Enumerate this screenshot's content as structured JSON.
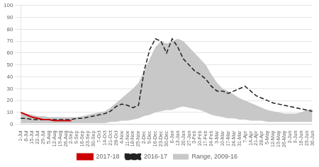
{
  "chart_data": {
    "type": "line",
    "categories": [
      "1-Jul",
      "8-Jul",
      "15-Jul",
      "22-Jul",
      "29-Jul",
      "5-Aug",
      "12-Aug",
      "19-Aug",
      "26-Aug",
      "2-Sep",
      "9-Sep",
      "16-Sep",
      "23-Sep",
      "30-Sep",
      "7-Oct",
      "14-Oct",
      "21-Oct",
      "28-Oct",
      "4-Nov",
      "11-Nov",
      "18-Nov",
      "25-Nov",
      "2-Dec",
      "9-Dec",
      "16-Dec",
      "23-Dec",
      "30-Dec",
      "6-Jan",
      "13-Jan",
      "20-Jan",
      "27-Jan",
      "3-Feb",
      "10-Feb",
      "17-Feb",
      "24-Feb",
      "3-Mar",
      "10-Mar",
      "17-Mar",
      "24-Mar",
      "31-Mar",
      "7-Apr",
      "14-Apr",
      "21-Apr",
      "28-Apr",
      "5-May",
      "12-May",
      "19-May",
      "26-May",
      "2-Jun",
      "9-Jun",
      "16-Jun",
      "23-Jun",
      "30-Jun"
    ],
    "series": [
      {
        "name": "Range, 2009-16",
        "type": "area",
        "color": "#c8c8c8",
        "low": [
          1,
          1,
          1,
          1,
          1,
          1,
          1,
          1,
          1,
          1,
          1,
          1,
          1,
          1,
          1,
          1,
          2,
          2,
          3,
          3,
          4,
          5,
          7,
          8,
          10,
          11,
          12,
          12,
          14,
          15,
          14,
          13,
          12,
          10,
          8,
          7,
          6,
          5,
          5,
          4,
          4,
          3,
          3,
          3,
          2,
          2,
          2,
          2,
          2,
          2,
          2,
          2,
          2
        ],
        "high": [
          10,
          9,
          8,
          7,
          7,
          6,
          6,
          6,
          6,
          6,
          6,
          7,
          8,
          9,
          10,
          11,
          14,
          18,
          22,
          26,
          30,
          35,
          45,
          55,
          65,
          70,
          68,
          70,
          72,
          70,
          65,
          60,
          55,
          50,
          42,
          35,
          30,
          28,
          25,
          22,
          20,
          18,
          16,
          14,
          12,
          11,
          10,
          9,
          9,
          9,
          10,
          12,
          13
        ]
      },
      {
        "name": "2016-17",
        "type": "line",
        "color": "#222222",
        "line_style": "dashed",
        "values": [
          5,
          5,
          4,
          4,
          4,
          4,
          4,
          4,
          4,
          4,
          5,
          5,
          6,
          7,
          8,
          9,
          11,
          15,
          17,
          16,
          14,
          16,
          45,
          63,
          72,
          70,
          60,
          72,
          65,
          55,
          50,
          45,
          42,
          38,
          32,
          28,
          28,
          26,
          28,
          30,
          32,
          28,
          24,
          22,
          20,
          18,
          17,
          16,
          15,
          14,
          13,
          12,
          11
        ]
      },
      {
        "name": "2017-18",
        "type": "line",
        "color": "#cc0000",
        "line_style": "solid",
        "values": [
          10,
          8,
          6,
          5,
          4,
          4,
          3,
          3,
          3,
          3,
          null,
          null,
          null,
          null,
          null,
          null,
          null,
          null,
          null,
          null,
          null,
          null,
          null,
          null,
          null,
          null,
          null,
          null,
          null,
          null,
          null,
          null,
          null,
          null,
          null,
          null,
          null,
          null,
          null,
          null,
          null,
          null,
          null,
          null,
          null,
          null,
          null,
          null,
          null,
          null,
          null,
          null,
          null
        ]
      }
    ],
    "ylim": [
      0,
      100
    ],
    "yticks": [
      0,
      10,
      20,
      30,
      40,
      50,
      60,
      70,
      80,
      90,
      100
    ],
    "grid": "y",
    "legend": "bottom"
  }
}
